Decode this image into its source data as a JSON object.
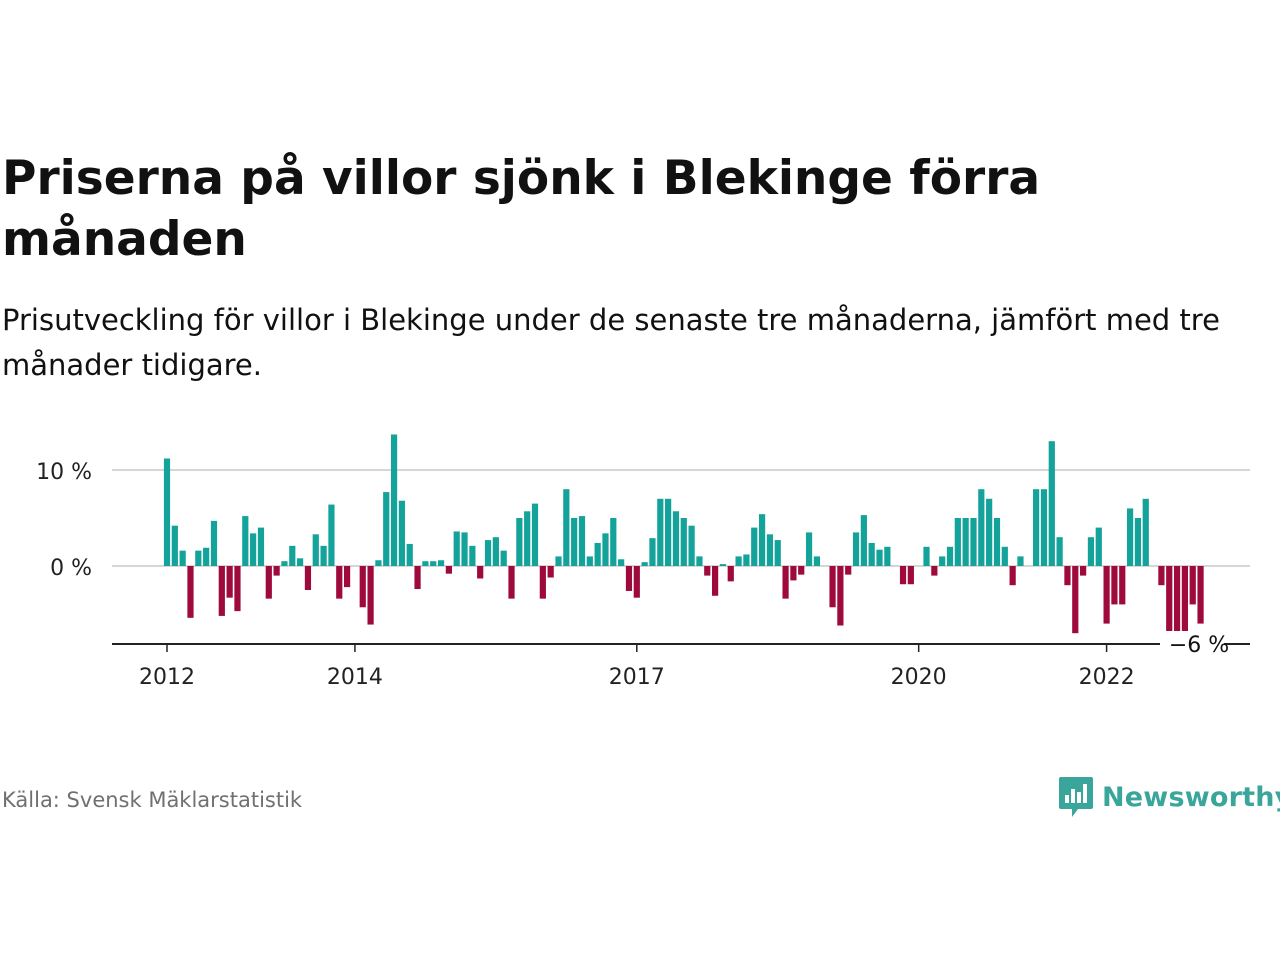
{
  "title": "Priserna på villor sjönk i Blekinge förra månaden",
  "subtitle": "Prisutveckling för villor i Blekinge under de senaste tre månaderna, jämfört med tre månader tidigare.",
  "source": "Källa: Svensk Mäklarstatistik",
  "brand": "Newsworthy",
  "colors": {
    "positive": "#14a39a",
    "negative": "#9e0a3c",
    "grid": "#d6d6d6",
    "axis": "#222222",
    "brand": "#3aa59a"
  },
  "chart_data": {
    "type": "bar",
    "x_start": "2012-01",
    "x_end": "2023-06",
    "ylim": [
      -8,
      14
    ],
    "y_ticks": [
      {
        "value": 10,
        "label": "10 %"
      },
      {
        "value": 0,
        "label": "0 %"
      }
    ],
    "x_ticks": [
      {
        "value": "2012-01",
        "label": "2012"
      },
      {
        "value": "2014-01",
        "label": "2014"
      },
      {
        "value": "2017-01",
        "label": "2017"
      },
      {
        "value": "2020-01",
        "label": "2020"
      },
      {
        "value": "2022-01",
        "label": "2022"
      }
    ],
    "last_label": "−6 %",
    "grid": true,
    "values": [
      11.2,
      4.2,
      1.6,
      -5.4,
      1.6,
      1.9,
      4.7,
      -5.2,
      -3.3,
      -4.7,
      5.2,
      3.4,
      4.0,
      -3.4,
      -1.0,
      0.5,
      2.1,
      0.8,
      -2.5,
      3.3,
      2.1,
      6.4,
      -3.4,
      -2.2,
      0.0,
      -4.3,
      -6.1,
      0.6,
      7.7,
      13.7,
      6.8,
      2.3,
      -2.4,
      0.5,
      0.5,
      0.6,
      -0.8,
      3.6,
      3.5,
      2.1,
      -1.3,
      2.7,
      3.0,
      1.6,
      -3.4,
      5.0,
      5.7,
      6.5,
      -3.4,
      -1.2,
      1.0,
      8.0,
      5.0,
      5.2,
      1.0,
      2.4,
      3.4,
      5.0,
      0.7,
      -2.6,
      -3.3,
      0.4,
      2.9,
      7.0,
      7.0,
      5.7,
      5.0,
      4.2,
      1.0,
      -1.0,
      -3.1,
      0.2,
      -1.6,
      1.0,
      1.2,
      4.0,
      5.4,
      3.3,
      2.7,
      -3.4,
      -1.5,
      -0.9,
      3.5,
      1.0,
      0.0,
      -4.3,
      -6.2,
      -0.9,
      3.5,
      5.3,
      2.4,
      1.7,
      2.0,
      0.0,
      -1.9,
      -1.9,
      0.0,
      2.0,
      -1.0,
      1.0,
      2.0,
      5.0,
      5.0,
      5.0,
      8.0,
      7.0,
      5.0,
      2.0,
      -2.0,
      1.0,
      0.0,
      8.0,
      8.0,
      13.0,
      3.0,
      -2.0,
      -7.0,
      -1.0,
      3.0,
      4.0,
      -6.0,
      -4.0,
      -4.0,
      6.0,
      5.0,
      7.0,
      0.0,
      -2.0,
      -7.0,
      -7.0,
      -7.0,
      -4.0,
      -6.0
    ]
  }
}
